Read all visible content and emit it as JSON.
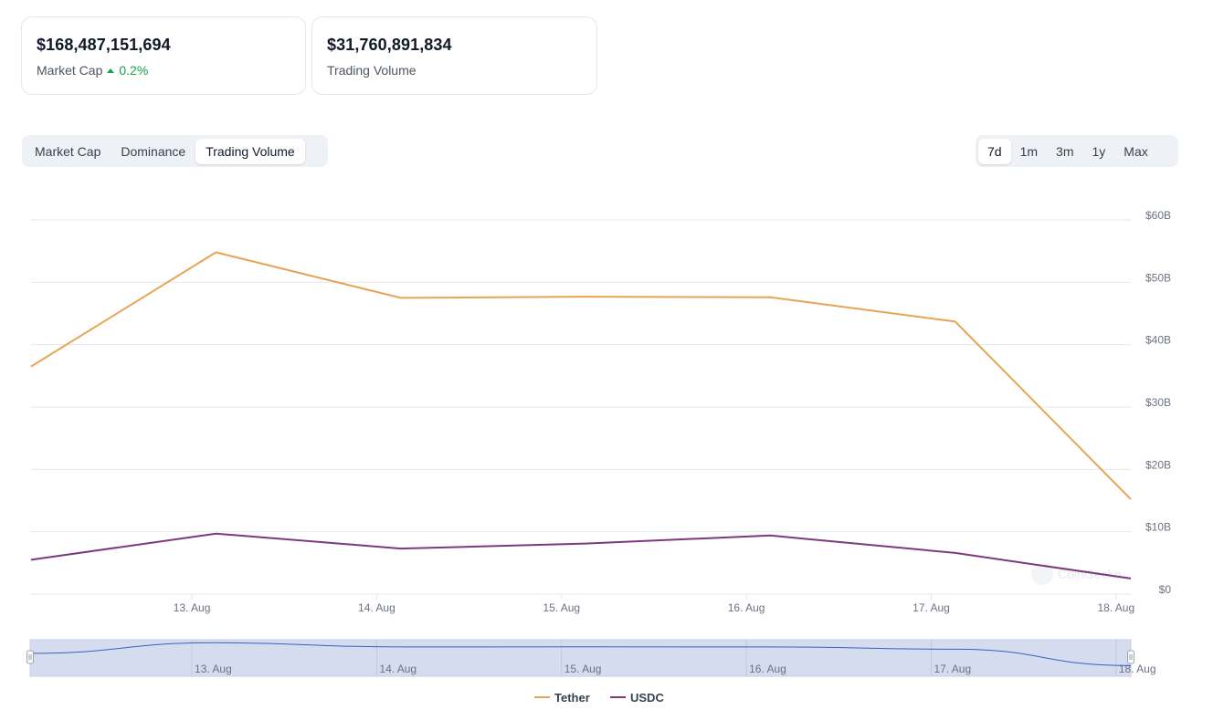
{
  "stats": [
    {
      "value": "$168,487,151,694",
      "label": "Market Cap",
      "change": "0.2%",
      "change_color": "#16a34a"
    },
    {
      "value": "$31,760,891,834",
      "label": "Trading Volume"
    }
  ],
  "view_tabs": [
    {
      "label": "Market Cap",
      "active": false
    },
    {
      "label": "Dominance",
      "active": false
    },
    {
      "label": "Trading Volume",
      "active": true
    }
  ],
  "range_tabs": [
    {
      "label": "7d",
      "active": true
    },
    {
      "label": "1m",
      "active": false
    },
    {
      "label": "3m",
      "active": false
    },
    {
      "label": "1y",
      "active": false
    },
    {
      "label": "Max",
      "active": false
    }
  ],
  "watermark": "CoinGecko",
  "chart_data": {
    "type": "line",
    "title": "",
    "xlabel": "",
    "ylabel": "",
    "x": [
      12.13,
      13.13,
      14.13,
      15.13,
      16.13,
      17.13,
      18.08
    ],
    "x_unit": "Aug day",
    "xlim": [
      12.13,
      18.08
    ],
    "x_ticks": [
      {
        "value": 13,
        "label": "13. Aug"
      },
      {
        "value": 14,
        "label": "14. Aug"
      },
      {
        "value": 15,
        "label": "15. Aug"
      },
      {
        "value": 16,
        "label": "16. Aug"
      },
      {
        "value": 17,
        "label": "17. Aug"
      },
      {
        "value": 18,
        "label": "18. Aug"
      }
    ],
    "ylim": [
      0,
      60
    ],
    "y_unit": "billion USD",
    "y_ticks": [
      {
        "value": 0,
        "label": "$0"
      },
      {
        "value": 10,
        "label": "$10B"
      },
      {
        "value": 20,
        "label": "$20B"
      },
      {
        "value": 30,
        "label": "$30B"
      },
      {
        "value": 40,
        "label": "$40B"
      },
      {
        "value": 50,
        "label": "$50B"
      },
      {
        "value": 60,
        "label": "$60B"
      }
    ],
    "grid": true,
    "legend_position": "bottom-center",
    "series": [
      {
        "name": "Tether",
        "color": "#e8a455",
        "values": [
          36.5,
          54.8,
          47.5,
          47.7,
          47.6,
          43.7,
          15.2
        ]
      },
      {
        "name": "USDC",
        "color": "#7b3a7e",
        "values": [
          5.5,
          9.7,
          7.3,
          8.1,
          9.4,
          6.6,
          2.5
        ]
      }
    ],
    "navigator": {
      "line_color": "#3b5fc0",
      "fill_color": "#d6dcef",
      "series": "Tether"
    }
  }
}
